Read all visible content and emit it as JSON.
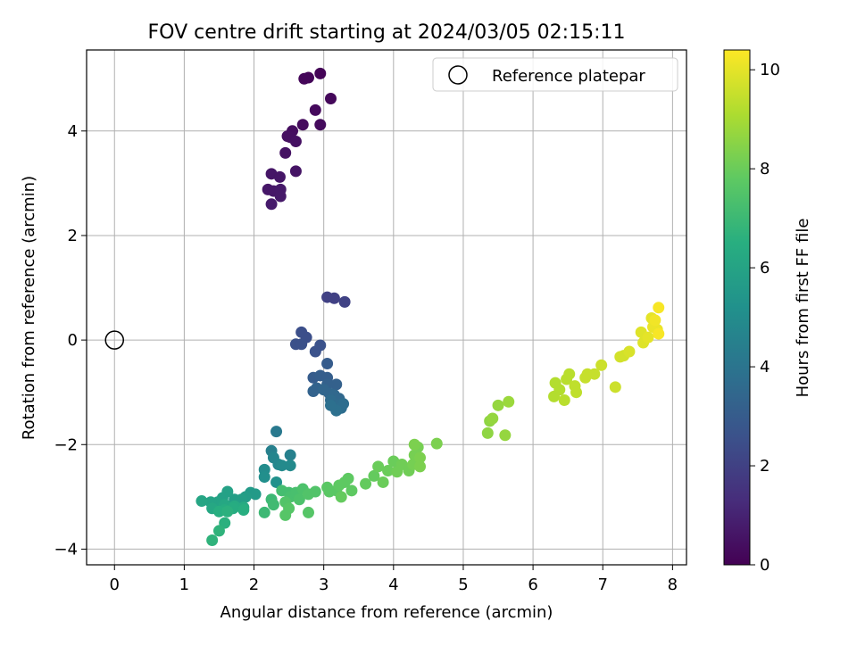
{
  "chart_data": {
    "type": "scatter",
    "title": "FOV centre drift starting at 2024/03/05 02:15:11",
    "xlabel": "Angular distance from reference (arcmin)",
    "ylabel": "Rotation from reference (arcmin)",
    "xlim": [
      -0.4,
      8.2
    ],
    "ylim": [
      -4.3,
      5.55
    ],
    "xticks": [
      0,
      1,
      2,
      3,
      4,
      5,
      6,
      7,
      8
    ],
    "yticks": [
      -4,
      -2,
      0,
      2,
      4
    ],
    "grid": true,
    "legend": {
      "entries": [
        "Reference platepar"
      ],
      "placement": "top-right"
    },
    "colormap": "viridis",
    "colorbar": {
      "label": "Hours from first FF file",
      "range": [
        0,
        10.4
      ],
      "ticks": [
        0,
        2,
        4,
        6,
        8,
        10
      ]
    },
    "reference_point": {
      "x": 0,
      "y": 0
    },
    "series": [
      {
        "values": [
          [
            2.95,
            5.1,
            0.1
          ],
          [
            2.78,
            5.02,
            0.12
          ],
          [
            2.72,
            5.0,
            0.15
          ],
          [
            3.1,
            4.62,
            0.2
          ],
          [
            2.88,
            4.4,
            0.25
          ],
          [
            2.7,
            4.12,
            0.3
          ],
          [
            2.95,
            4.12,
            0.3
          ],
          [
            2.55,
            4.0,
            0.35
          ],
          [
            2.48,
            3.9,
            0.4
          ],
          [
            2.52,
            3.88,
            0.4
          ],
          [
            2.6,
            3.8,
            0.45
          ],
          [
            2.45,
            3.58,
            0.5
          ],
          [
            2.6,
            3.23,
            0.55
          ],
          [
            2.25,
            3.18,
            0.6
          ],
          [
            2.37,
            3.12,
            0.6
          ],
          [
            2.2,
            2.88,
            0.65
          ],
          [
            2.28,
            2.85,
            0.65
          ],
          [
            2.38,
            2.88,
            0.7
          ],
          [
            2.38,
            2.75,
            0.7
          ],
          [
            2.25,
            2.6,
            0.75
          ],
          [
            3.05,
            0.82,
            2.0
          ],
          [
            3.15,
            0.8,
            2.0
          ],
          [
            3.3,
            0.73,
            2.05
          ],
          [
            2.68,
            0.15,
            2.5
          ],
          [
            2.75,
            0.05,
            2.5
          ],
          [
            2.6,
            -0.08,
            2.55
          ],
          [
            2.68,
            -0.08,
            2.55
          ],
          [
            2.95,
            -0.1,
            2.6
          ],
          [
            2.88,
            -0.22,
            2.6
          ],
          [
            3.05,
            -0.45,
            3.0
          ],
          [
            2.85,
            -0.72,
            3.0
          ],
          [
            2.95,
            -0.68,
            3.1
          ],
          [
            3.05,
            -0.72,
            3.1
          ],
          [
            3.18,
            -0.85,
            3.2
          ],
          [
            3.05,
            -0.85,
            3.2
          ],
          [
            2.9,
            -0.92,
            3.3
          ],
          [
            2.85,
            -0.98,
            3.3
          ],
          [
            3.0,
            -0.95,
            3.4
          ],
          [
            3.08,
            -1.02,
            3.4
          ],
          [
            3.15,
            -1.05,
            3.5
          ],
          [
            3.22,
            -1.12,
            3.5
          ],
          [
            3.1,
            -1.15,
            3.6
          ],
          [
            3.2,
            -1.25,
            3.6
          ],
          [
            3.28,
            -1.22,
            3.7
          ],
          [
            3.25,
            -1.3,
            3.7
          ],
          [
            3.18,
            -1.35,
            3.8
          ],
          [
            3.1,
            -1.25,
            3.8
          ],
          [
            2.32,
            -1.75,
            4.2
          ],
          [
            2.25,
            -2.12,
            4.5
          ],
          [
            2.52,
            -2.2,
            4.5
          ],
          [
            2.28,
            -2.25,
            4.7
          ],
          [
            2.35,
            -2.38,
            4.8
          ],
          [
            2.4,
            -2.4,
            4.9
          ],
          [
            2.52,
            -2.4,
            4.9
          ],
          [
            2.15,
            -2.48,
            5.0
          ],
          [
            2.15,
            -2.62,
            5.1
          ],
          [
            2.32,
            -2.72,
            5.2
          ],
          [
            1.95,
            -2.92,
            5.6
          ],
          [
            2.02,
            -2.95,
            5.6
          ],
          [
            1.88,
            -3.0,
            5.7
          ],
          [
            1.82,
            -3.05,
            5.8
          ],
          [
            1.72,
            -3.05,
            5.8
          ],
          [
            1.62,
            -2.9,
            5.9
          ],
          [
            1.55,
            -3.02,
            5.9
          ],
          [
            1.48,
            -3.1,
            6.0
          ],
          [
            1.38,
            -3.1,
            6.0
          ],
          [
            1.25,
            -3.08,
            6.1
          ],
          [
            1.4,
            -3.22,
            6.2
          ],
          [
            1.58,
            -3.15,
            6.2
          ],
          [
            1.72,
            -3.18,
            6.3
          ],
          [
            1.85,
            -3.2,
            6.3
          ],
          [
            1.58,
            -3.25,
            6.4
          ],
          [
            1.7,
            -3.22,
            6.4
          ],
          [
            1.85,
            -3.25,
            6.5
          ],
          [
            1.5,
            -3.28,
            6.5
          ],
          [
            1.62,
            -3.28,
            6.6
          ],
          [
            1.58,
            -3.5,
            6.6
          ],
          [
            1.5,
            -3.65,
            6.7
          ],
          [
            1.4,
            -3.83,
            6.7
          ],
          [
            2.15,
            -3.3,
            7.0
          ],
          [
            2.25,
            -3.05,
            7.0
          ],
          [
            2.28,
            -3.15,
            7.1
          ],
          [
            2.4,
            -2.88,
            7.2
          ],
          [
            2.5,
            -2.92,
            7.2
          ],
          [
            2.52,
            -3.0,
            7.3
          ],
          [
            2.6,
            -2.92,
            7.3
          ],
          [
            2.65,
            -3.05,
            7.4
          ],
          [
            2.7,
            -2.85,
            7.4
          ],
          [
            2.78,
            -2.95,
            7.5
          ],
          [
            2.88,
            -2.9,
            7.5
          ],
          [
            2.45,
            -3.1,
            7.5
          ],
          [
            2.5,
            -3.22,
            7.6
          ],
          [
            2.45,
            -3.35,
            7.6
          ],
          [
            2.78,
            -3.3,
            7.6
          ],
          [
            3.05,
            -2.82,
            7.7
          ],
          [
            3.08,
            -2.9,
            7.7
          ],
          [
            3.18,
            -2.88,
            7.7
          ],
          [
            3.22,
            -2.78,
            7.8
          ],
          [
            3.3,
            -2.72,
            7.8
          ],
          [
            3.35,
            -2.65,
            7.8
          ],
          [
            3.4,
            -2.88,
            7.8
          ],
          [
            3.25,
            -3.0,
            7.9
          ],
          [
            3.6,
            -2.75,
            7.9
          ],
          [
            3.72,
            -2.6,
            7.9
          ],
          [
            3.78,
            -2.42,
            8.0
          ],
          [
            3.85,
            -2.72,
            8.0
          ],
          [
            3.92,
            -2.5,
            8.0
          ],
          [
            4.0,
            -2.32,
            8.0
          ],
          [
            4.05,
            -2.52,
            8.1
          ],
          [
            4.12,
            -2.38,
            8.1
          ],
          [
            4.22,
            -2.5,
            8.1
          ],
          [
            4.28,
            -2.38,
            8.2
          ],
          [
            4.3,
            -2.2,
            8.2
          ],
          [
            4.35,
            -2.05,
            8.2
          ],
          [
            4.38,
            -2.25,
            8.3
          ],
          [
            4.38,
            -2.42,
            8.3
          ],
          [
            4.3,
            -2.0,
            8.3
          ],
          [
            4.62,
            -1.98,
            8.3
          ],
          [
            5.35,
            -1.78,
            8.6
          ],
          [
            5.38,
            -1.55,
            8.6
          ],
          [
            5.42,
            -1.5,
            8.7
          ],
          [
            5.5,
            -1.25,
            8.7
          ],
          [
            5.6,
            -1.82,
            8.7
          ],
          [
            5.65,
            -1.18,
            8.8
          ],
          [
            6.3,
            -1.08,
            9.2
          ],
          [
            6.32,
            -0.82,
            9.2
          ],
          [
            6.38,
            -0.95,
            9.2
          ],
          [
            6.45,
            -1.15,
            9.3
          ],
          [
            6.48,
            -0.75,
            9.3
          ],
          [
            6.52,
            -0.65,
            9.3
          ],
          [
            6.6,
            -0.88,
            9.4
          ],
          [
            6.62,
            -1.0,
            9.4
          ],
          [
            6.75,
            -0.72,
            9.5
          ],
          [
            6.78,
            -0.65,
            9.5
          ],
          [
            6.88,
            -0.65,
            9.5
          ],
          [
            6.98,
            -0.48,
            9.6
          ],
          [
            7.18,
            -0.9,
            9.6
          ],
          [
            7.25,
            -0.32,
            9.7
          ],
          [
            7.3,
            -0.3,
            9.7
          ],
          [
            7.38,
            -0.22,
            9.8
          ],
          [
            7.55,
            0.15,
            9.9
          ],
          [
            7.58,
            -0.05,
            9.9
          ],
          [
            7.65,
            0.05,
            10.0
          ],
          [
            7.7,
            0.42,
            10.0
          ],
          [
            7.72,
            0.25,
            10.1
          ],
          [
            7.78,
            0.2,
            10.1
          ],
          [
            7.75,
            0.38,
            10.2
          ],
          [
            7.8,
            0.12,
            10.3
          ],
          [
            7.8,
            0.62,
            10.3
          ]
        ]
      }
    ]
  }
}
